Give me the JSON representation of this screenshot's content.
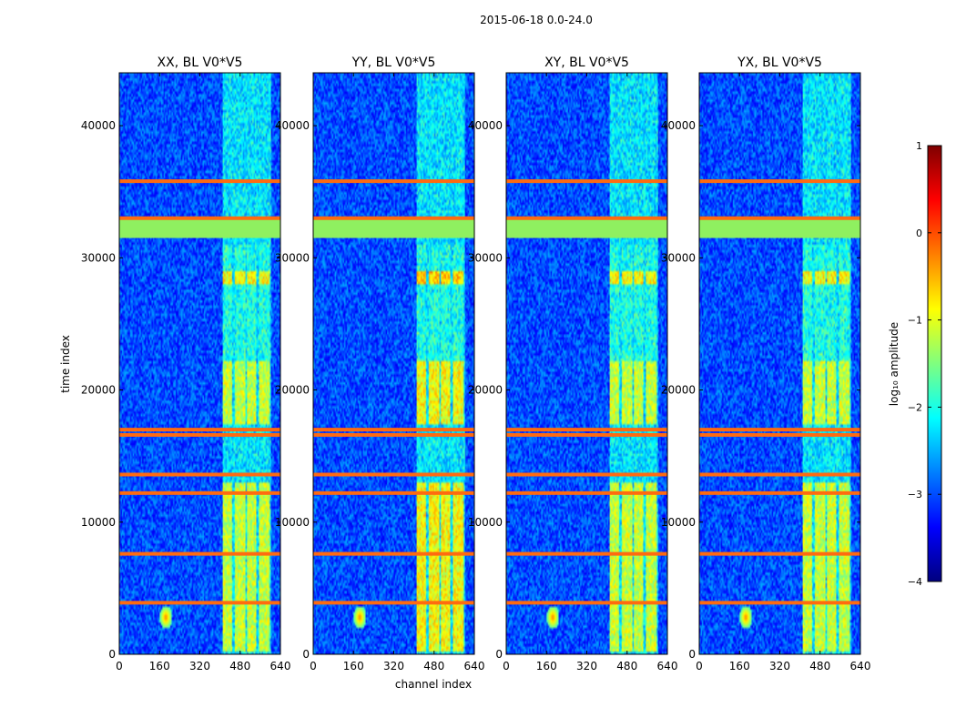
{
  "chart_data": {
    "type": "heatmap",
    "suptitle": "2015-06-18 0.0-24.0",
    "xlabel": "channel index",
    "ylabel": "time index",
    "xlim": [
      0,
      640
    ],
    "ylim": [
      0,
      44000
    ],
    "xticks": [
      0,
      160,
      320,
      480,
      640
    ],
    "yticks": [
      0,
      10000,
      20000,
      30000,
      40000
    ],
    "xtick_labels": [
      "0",
      "160",
      "320",
      "480",
      "640"
    ],
    "ytick_labels": [
      "0",
      "10000",
      "20000",
      "30000",
      "40000"
    ],
    "panels": [
      {
        "title": "XX, BL V0*V5"
      },
      {
        "title": "YY, BL V0*V5"
      },
      {
        "title": "XY, BL V0*V5"
      },
      {
        "title": "YX, BL V0*V5"
      }
    ],
    "colorbar": {
      "label": "log₁₀ amplitude",
      "range": [
        -4,
        1
      ],
      "ticks": [
        1,
        0,
        -1,
        -2,
        -3,
        -4
      ],
      "tick_labels": [
        "1",
        "0",
        "−1",
        "−2",
        "−3",
        "−4"
      ],
      "colormap": [
        "#00007f",
        "#0000ff",
        "#007fff",
        "#00ffff",
        "#7fff7f",
        "#ffff00",
        "#ff7f00",
        "#ff0000",
        "#7f0000"
      ]
    },
    "features": {
      "rfi_channel_band": [
        410,
        600
      ],
      "rfi_channel_bins": [
        [
          410,
          450
        ],
        [
          460,
          500
        ],
        [
          505,
          545
        ],
        [
          555,
          595
        ]
      ],
      "strong_bursts": [
        [
          17500,
          22200
        ],
        [
          300,
          13000
        ],
        [
          28000,
          29000
        ]
      ],
      "saturated_rows_orange": [
        3900,
        7600,
        12200,
        13600,
        16600,
        17000,
        33000,
        35800
      ],
      "flagged_block_green": [
        31500,
        32900
      ],
      "point_source": {
        "channel": 185,
        "time": 2800
      }
    }
  }
}
